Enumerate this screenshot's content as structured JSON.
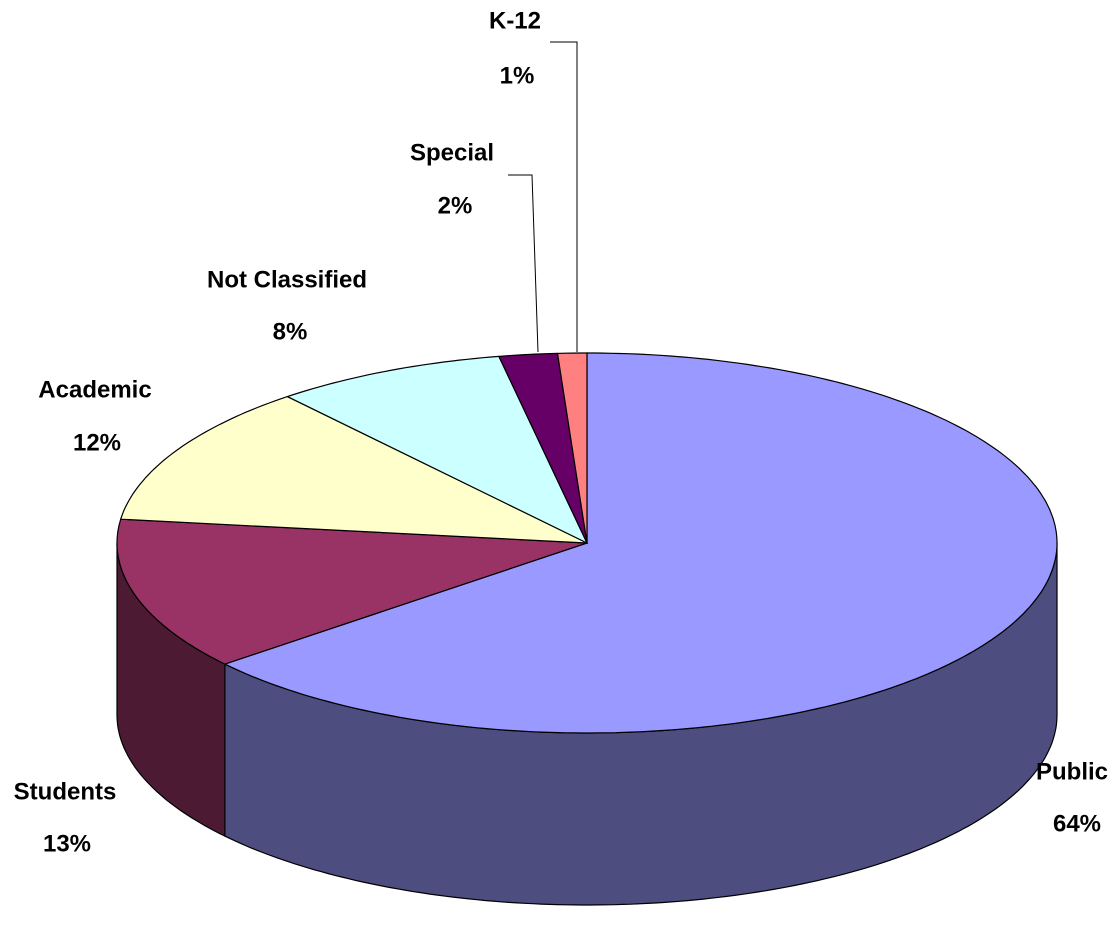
{
  "chart_data": {
    "type": "pie",
    "categories": [
      "Public",
      "Students",
      "Academic",
      "Not Classified",
      "Special",
      "K-12"
    ],
    "values": [
      64,
      13,
      12,
      8,
      2,
      1
    ],
    "value_labels": [
      "64%",
      "13%",
      "12%",
      "8%",
      "2%",
      "1%"
    ],
    "colors": [
      "#9999ff",
      "#993366",
      "#ffffcc",
      "#ccffff",
      "#660066",
      "#ff8080"
    ]
  }
}
